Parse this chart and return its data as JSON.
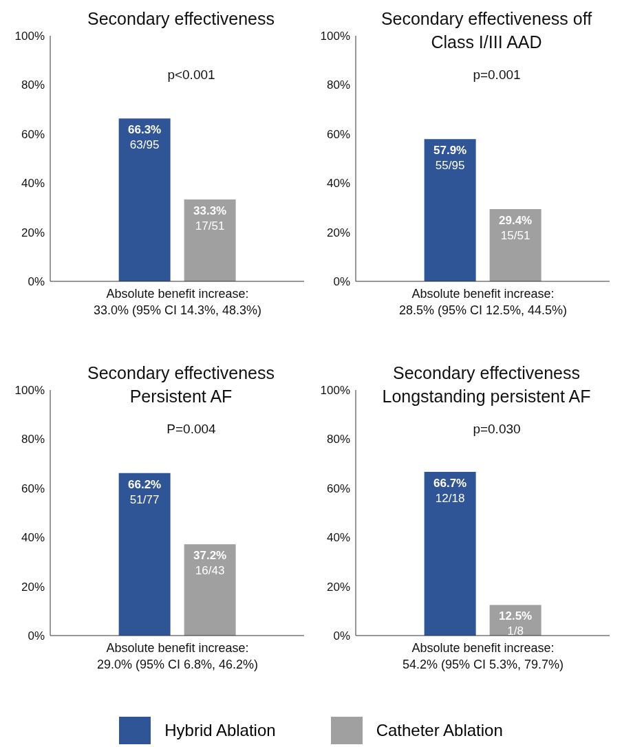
{
  "chart_data": [
    {
      "type": "bar",
      "title": "Secondary effectiveness",
      "categories": [
        null
      ],
      "series": [
        {
          "color": "#2f5597",
          "values": [
            66.3
          ],
          "value_labels": [
            "66.3%\n63/95"
          ]
        },
        {
          "color": "#a0a0a0",
          "values": [
            33.3
          ],
          "value_labels": [
            "33.3%\n17/51"
          ]
        }
      ],
      "ylim": [
        0,
        100
      ],
      "yticks": [
        {
          "value": 0,
          "label": "0%"
        },
        {
          "value": 20,
          "label": "20%"
        },
        {
          "value": 40,
          "label": "40%"
        },
        {
          "value": 60,
          "label": "60%"
        },
        {
          "value": 80,
          "label": "80%"
        },
        {
          "value": 100,
          "label": "100%"
        }
      ],
      "grid": false,
      "annotations": [
        "p<0.001",
        "Absolute benefit increase:\n33.0% (95% CI 14.3%, 48.3%)"
      ]
    },
    {
      "type": "bar",
      "title": "Secondary effectiveness off\nClass I/III AAD",
      "categories": [
        null
      ],
      "series": [
        {
          "color": "#2f5597",
          "values": [
            57.9
          ],
          "value_labels": [
            "57.9%\n55/95"
          ]
        },
        {
          "color": "#a0a0a0",
          "values": [
            29.4
          ],
          "value_labels": [
            "29.4%\n15/51"
          ]
        }
      ],
      "ylim": [
        0,
        100
      ],
      "yticks": [
        {
          "value": 0,
          "label": "0%"
        },
        {
          "value": 20,
          "label": "20%"
        },
        {
          "value": 40,
          "label": "40%"
        },
        {
          "value": 60,
          "label": "60%"
        },
        {
          "value": 80,
          "label": "80%"
        },
        {
          "value": 100,
          "label": "100%"
        }
      ],
      "grid": false,
      "annotations": [
        "p=0.001",
        "Absolute benefit increase:\n28.5% (95% CI 12.5%, 44.5%)"
      ]
    },
    {
      "type": "bar",
      "title": "Secondary effectiveness\nPersistent AF",
      "categories": [
        null
      ],
      "series": [
        {
          "color": "#2f5597",
          "values": [
            66.2
          ],
          "value_labels": [
            "66.2%\n51/77"
          ]
        },
        {
          "color": "#a0a0a0",
          "values": [
            37.2
          ],
          "value_labels": [
            "37.2%\n16/43"
          ]
        }
      ],
      "ylim": [
        0,
        100
      ],
      "yticks": [
        {
          "value": 0,
          "label": "0%"
        },
        {
          "value": 20,
          "label": "20%"
        },
        {
          "value": 40,
          "label": "40%"
        },
        {
          "value": 60,
          "label": "60%"
        },
        {
          "value": 80,
          "label": "80%"
        },
        {
          "value": 100,
          "label": "100%"
        }
      ],
      "grid": false,
      "annotations": [
        "P=0.004",
        "Absolute benefit increase:\n29.0% (95% CI 6.8%, 46.2%)"
      ]
    },
    {
      "type": "bar",
      "title": "Secondary effectiveness\nLongstanding persistent AF",
      "categories": [
        null
      ],
      "series": [
        {
          "name": "Hybrid Ablation",
          "color": "#2f5597",
          "values": [
            66.7
          ],
          "value_labels": [
            "66.7%\n12/18"
          ]
        },
        {
          "name": "Catheter Ablation",
          "color": "#a0a0a0",
          "values": [
            12.5
          ],
          "value_labels": [
            "12.5%\n1/8"
          ]
        }
      ],
      "ylim": [
        0,
        100
      ],
      "yticks": [
        {
          "value": 0,
          "label": "0%"
        },
        {
          "value": 20,
          "label": "20%"
        },
        {
          "value": 40,
          "label": "40%"
        },
        {
          "value": 60,
          "label": "60%"
        },
        {
          "value": 80,
          "label": "80%"
        },
        {
          "value": 100,
          "label": "100%"
        }
      ],
      "grid": false,
      "legend": "bottom",
      "annotations": [
        "p=0.030",
        "Absolute benefit increase:\n54.2% (95% CI 5.3%, 79.7%)"
      ]
    }
  ]
}
